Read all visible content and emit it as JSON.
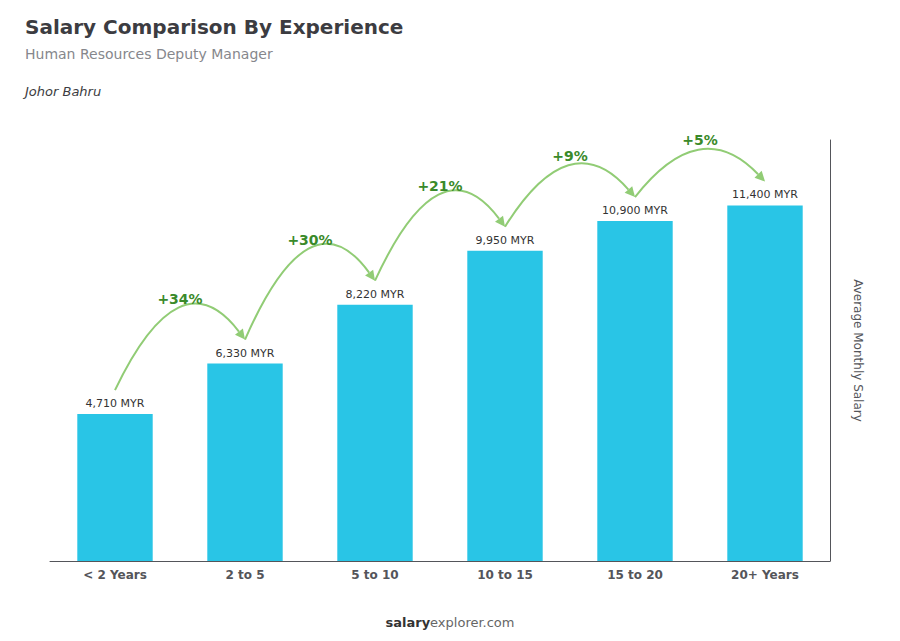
{
  "chart_data": {
    "type": "bar",
    "title": "Salary Comparison By Experience",
    "subtitle": "Human Resources Deputy Manager",
    "location": "Johor Bahru",
    "ylabel": "Average Monthly Salary",
    "footer": [
      "salary",
      "explorer.com"
    ],
    "categories": [
      "< 2 Years",
      "2 to 5",
      "5 to 10",
      "10 to 15",
      "15 to 20",
      "20+ Years"
    ],
    "values": [
      4710,
      6330,
      8220,
      9950,
      10900,
      11400
    ],
    "value_labels": [
      "4,710 MYR",
      "6,330 MYR",
      "8,220 MYR",
      "9,950 MYR",
      "10,900 MYR",
      "11,400 MYR"
    ],
    "change_labels": [
      null,
      "+34%",
      "+30%",
      "+21%",
      "+9%",
      "+5%"
    ],
    "color": "#29c5e6",
    "ylim": [
      0,
      13500
    ],
    "grid": false,
    "data_labels": true,
    "tick_labels": "x"
  }
}
